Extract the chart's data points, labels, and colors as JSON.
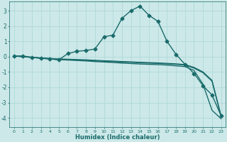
{
  "xlabel": "Humidex (Indice chaleur)",
  "background_color": "#cce8e8",
  "grid_color": "#b0d8d8",
  "line_color": "#1a6b6b",
  "xlim": [
    -0.5,
    23.5
  ],
  "ylim": [
    -4.6,
    3.6
  ],
  "yticks": [
    -4,
    -3,
    -2,
    -1,
    0,
    1,
    2,
    3
  ],
  "xticks": [
    0,
    1,
    2,
    3,
    4,
    5,
    6,
    7,
    8,
    9,
    10,
    11,
    12,
    13,
    14,
    15,
    16,
    17,
    18,
    19,
    20,
    21,
    22,
    23
  ],
  "series": [
    {
      "x": [
        0,
        1,
        2,
        3,
        4,
        5,
        6,
        7,
        8,
        9,
        10,
        11,
        12,
        13,
        14,
        15,
        16,
        17,
        18,
        19,
        20,
        21,
        22,
        23
      ],
      "y": [
        0.05,
        0.05,
        -0.05,
        -0.1,
        -0.15,
        -0.2,
        0.2,
        0.35,
        0.4,
        0.5,
        1.3,
        1.4,
        2.5,
        3.0,
        3.3,
        2.7,
        2.3,
        1.0,
        0.15,
        -0.5,
        -1.1,
        -1.9,
        -2.5,
        -3.85
      ],
      "marker": "D",
      "markersize": 2.5,
      "linewidth": 1.0
    },
    {
      "x": [
        0,
        1,
        2,
        3,
        4,
        5,
        6,
        7,
        8,
        9,
        10,
        11,
        12,
        13,
        14,
        15,
        16,
        17,
        18,
        19,
        20,
        21,
        22,
        23
      ],
      "y": [
        0.05,
        0.0,
        -0.05,
        -0.1,
        -0.15,
        -0.2,
        -0.22,
        -0.25,
        -0.28,
        -0.32,
        -0.35,
        -0.38,
        -0.42,
        -0.45,
        -0.48,
        -0.5,
        -0.52,
        -0.55,
        -0.6,
        -0.65,
        -0.9,
        -1.8,
        -3.5,
        -4.05
      ],
      "marker": null,
      "linewidth": 1.0
    },
    {
      "x": [
        0,
        1,
        2,
        3,
        4,
        5,
        6,
        7,
        8,
        9,
        10,
        11,
        12,
        13,
        14,
        15,
        16,
        17,
        18,
        19,
        20,
        21,
        22,
        23
      ],
      "y": [
        0.05,
        0.0,
        -0.05,
        -0.1,
        -0.14,
        -0.18,
        -0.2,
        -0.22,
        -0.24,
        -0.27,
        -0.3,
        -0.32,
        -0.35,
        -0.37,
        -0.4,
        -0.42,
        -0.44,
        -0.47,
        -0.5,
        -0.55,
        -0.75,
        -1.05,
        -1.6,
        -3.9
      ],
      "marker": null,
      "linewidth": 1.0
    },
    {
      "x": [
        0,
        1,
        2,
        3,
        4,
        5,
        6,
        7,
        8,
        9,
        10,
        11,
        12,
        13,
        14,
        15,
        16,
        17,
        18,
        19,
        20,
        21,
        22,
        23
      ],
      "y": [
        0.05,
        0.0,
        -0.04,
        -0.08,
        -0.12,
        -0.15,
        -0.17,
        -0.19,
        -0.21,
        -0.24,
        -0.27,
        -0.29,
        -0.32,
        -0.34,
        -0.37,
        -0.39,
        -0.41,
        -0.44,
        -0.47,
        -0.52,
        -0.7,
        -1.0,
        -1.55,
        -3.85
      ],
      "marker": null,
      "linewidth": 1.0
    }
  ]
}
